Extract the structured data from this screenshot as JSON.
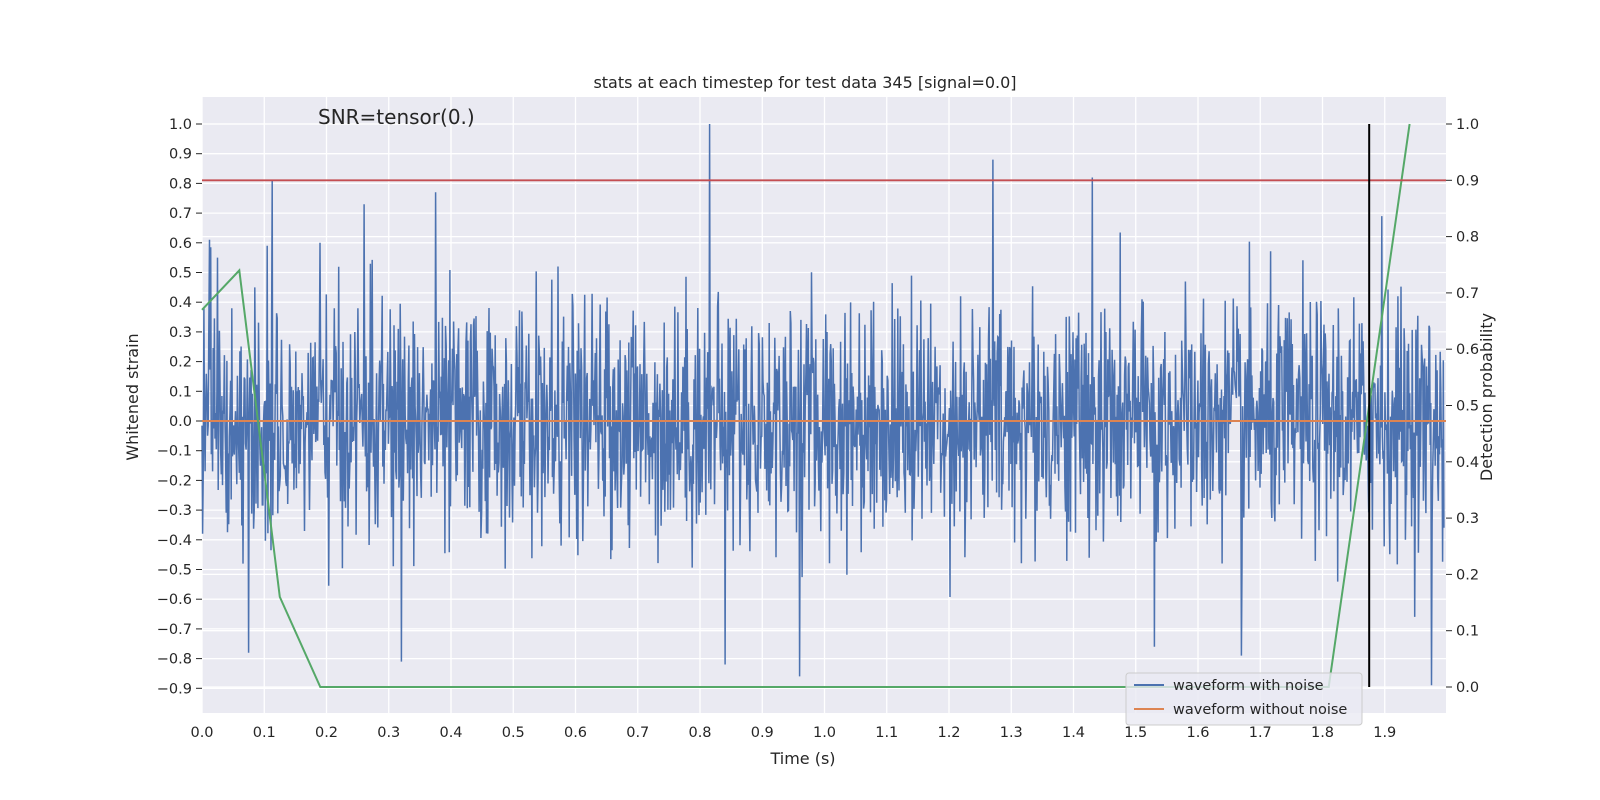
{
  "chart_data": {
    "type": "line",
    "title": "stats at each timestep for test data 345 [signal=0.0]",
    "annotation": "SNR=tensor(0.)",
    "xlabel": "Time (s)",
    "ylabel_left": "Whitened strain",
    "ylabel_right": "Detection probability",
    "xlim": [
      0.0,
      2.0
    ],
    "ylim_left": [
      -0.99,
      1.09
    ],
    "ylim_right": [
      -0.04,
      1.04
    ],
    "x_ticks": [
      "0.0",
      "0.1",
      "0.2",
      "0.3",
      "0.4",
      "0.5",
      "0.6",
      "0.7",
      "0.8",
      "0.9",
      "1.0",
      "1.1",
      "1.2",
      "1.3",
      "1.4",
      "1.5",
      "1.6",
      "1.7",
      "1.8",
      "1.9"
    ],
    "y_ticks_left": [
      "1.0",
      "0.9",
      "0.8",
      "0.7",
      "0.6",
      "0.5",
      "0.4",
      "0.3",
      "0.2",
      "0.1",
      "0.0",
      "−0.1",
      "−0.2",
      "−0.3",
      "−0.4",
      "−0.5",
      "−0.6",
      "−0.7",
      "−0.8",
      "−0.9"
    ],
    "y_ticks_right": [
      "1.0",
      "0.9",
      "0.8",
      "0.7",
      "0.6",
      "0.5",
      "0.4",
      "0.3",
      "0.2",
      "0.1",
      "0.0"
    ],
    "series": [
      {
        "name": "waveform with noise",
        "axis": "left",
        "color": "#4c72b0",
        "note": "noisy whitened strain, ~2048 samples over 0-2 s; peaks sampled",
        "peaks_x": [
          0.003,
          0.012,
          0.025,
          0.075,
          0.085,
          0.105,
          0.113,
          0.19,
          0.26,
          0.32,
          0.375,
          0.815,
          0.84,
          0.96,
          1.27,
          1.43,
          1.53,
          1.67,
          1.895,
          1.975
        ],
        "peaks_y": [
          0.38,
          0.61,
          0.55,
          -0.78,
          0.45,
          0.59,
          0.81,
          0.6,
          0.73,
          -0.81,
          0.77,
          1.0,
          -0.82,
          -0.86,
          0.88,
          0.82,
          -0.76,
          -0.79,
          0.69,
          -0.89
        ]
      },
      {
        "name": "waveform without noise",
        "axis": "left",
        "color": "#dd8452",
        "x": [
          0.0,
          2.0
        ],
        "y": [
          0.0,
          0.0
        ]
      },
      {
        "name": "detection probability",
        "axis": "right",
        "color": "#55a868",
        "x": [
          0.0,
          0.06,
          0.125,
          0.19,
          1.81,
          1.94
        ],
        "y": [
          0.67,
          0.74,
          0.16,
          0.0,
          0.0,
          1.0
        ]
      }
    ],
    "hlines": [
      {
        "axis": "right",
        "y": 0.9,
        "color": "#c44e52"
      }
    ],
    "vlines": [
      {
        "x": 1.875,
        "y_from": 0.0,
        "y_to": 1.0,
        "axis": "right",
        "color": "#000000"
      }
    ],
    "legend": {
      "location": "lower right",
      "entries": [
        {
          "label": "waveform with noise",
          "color": "#4c72b0"
        },
        {
          "label": "waveform without noise",
          "color": "#dd8452"
        }
      ]
    },
    "grid": true
  }
}
